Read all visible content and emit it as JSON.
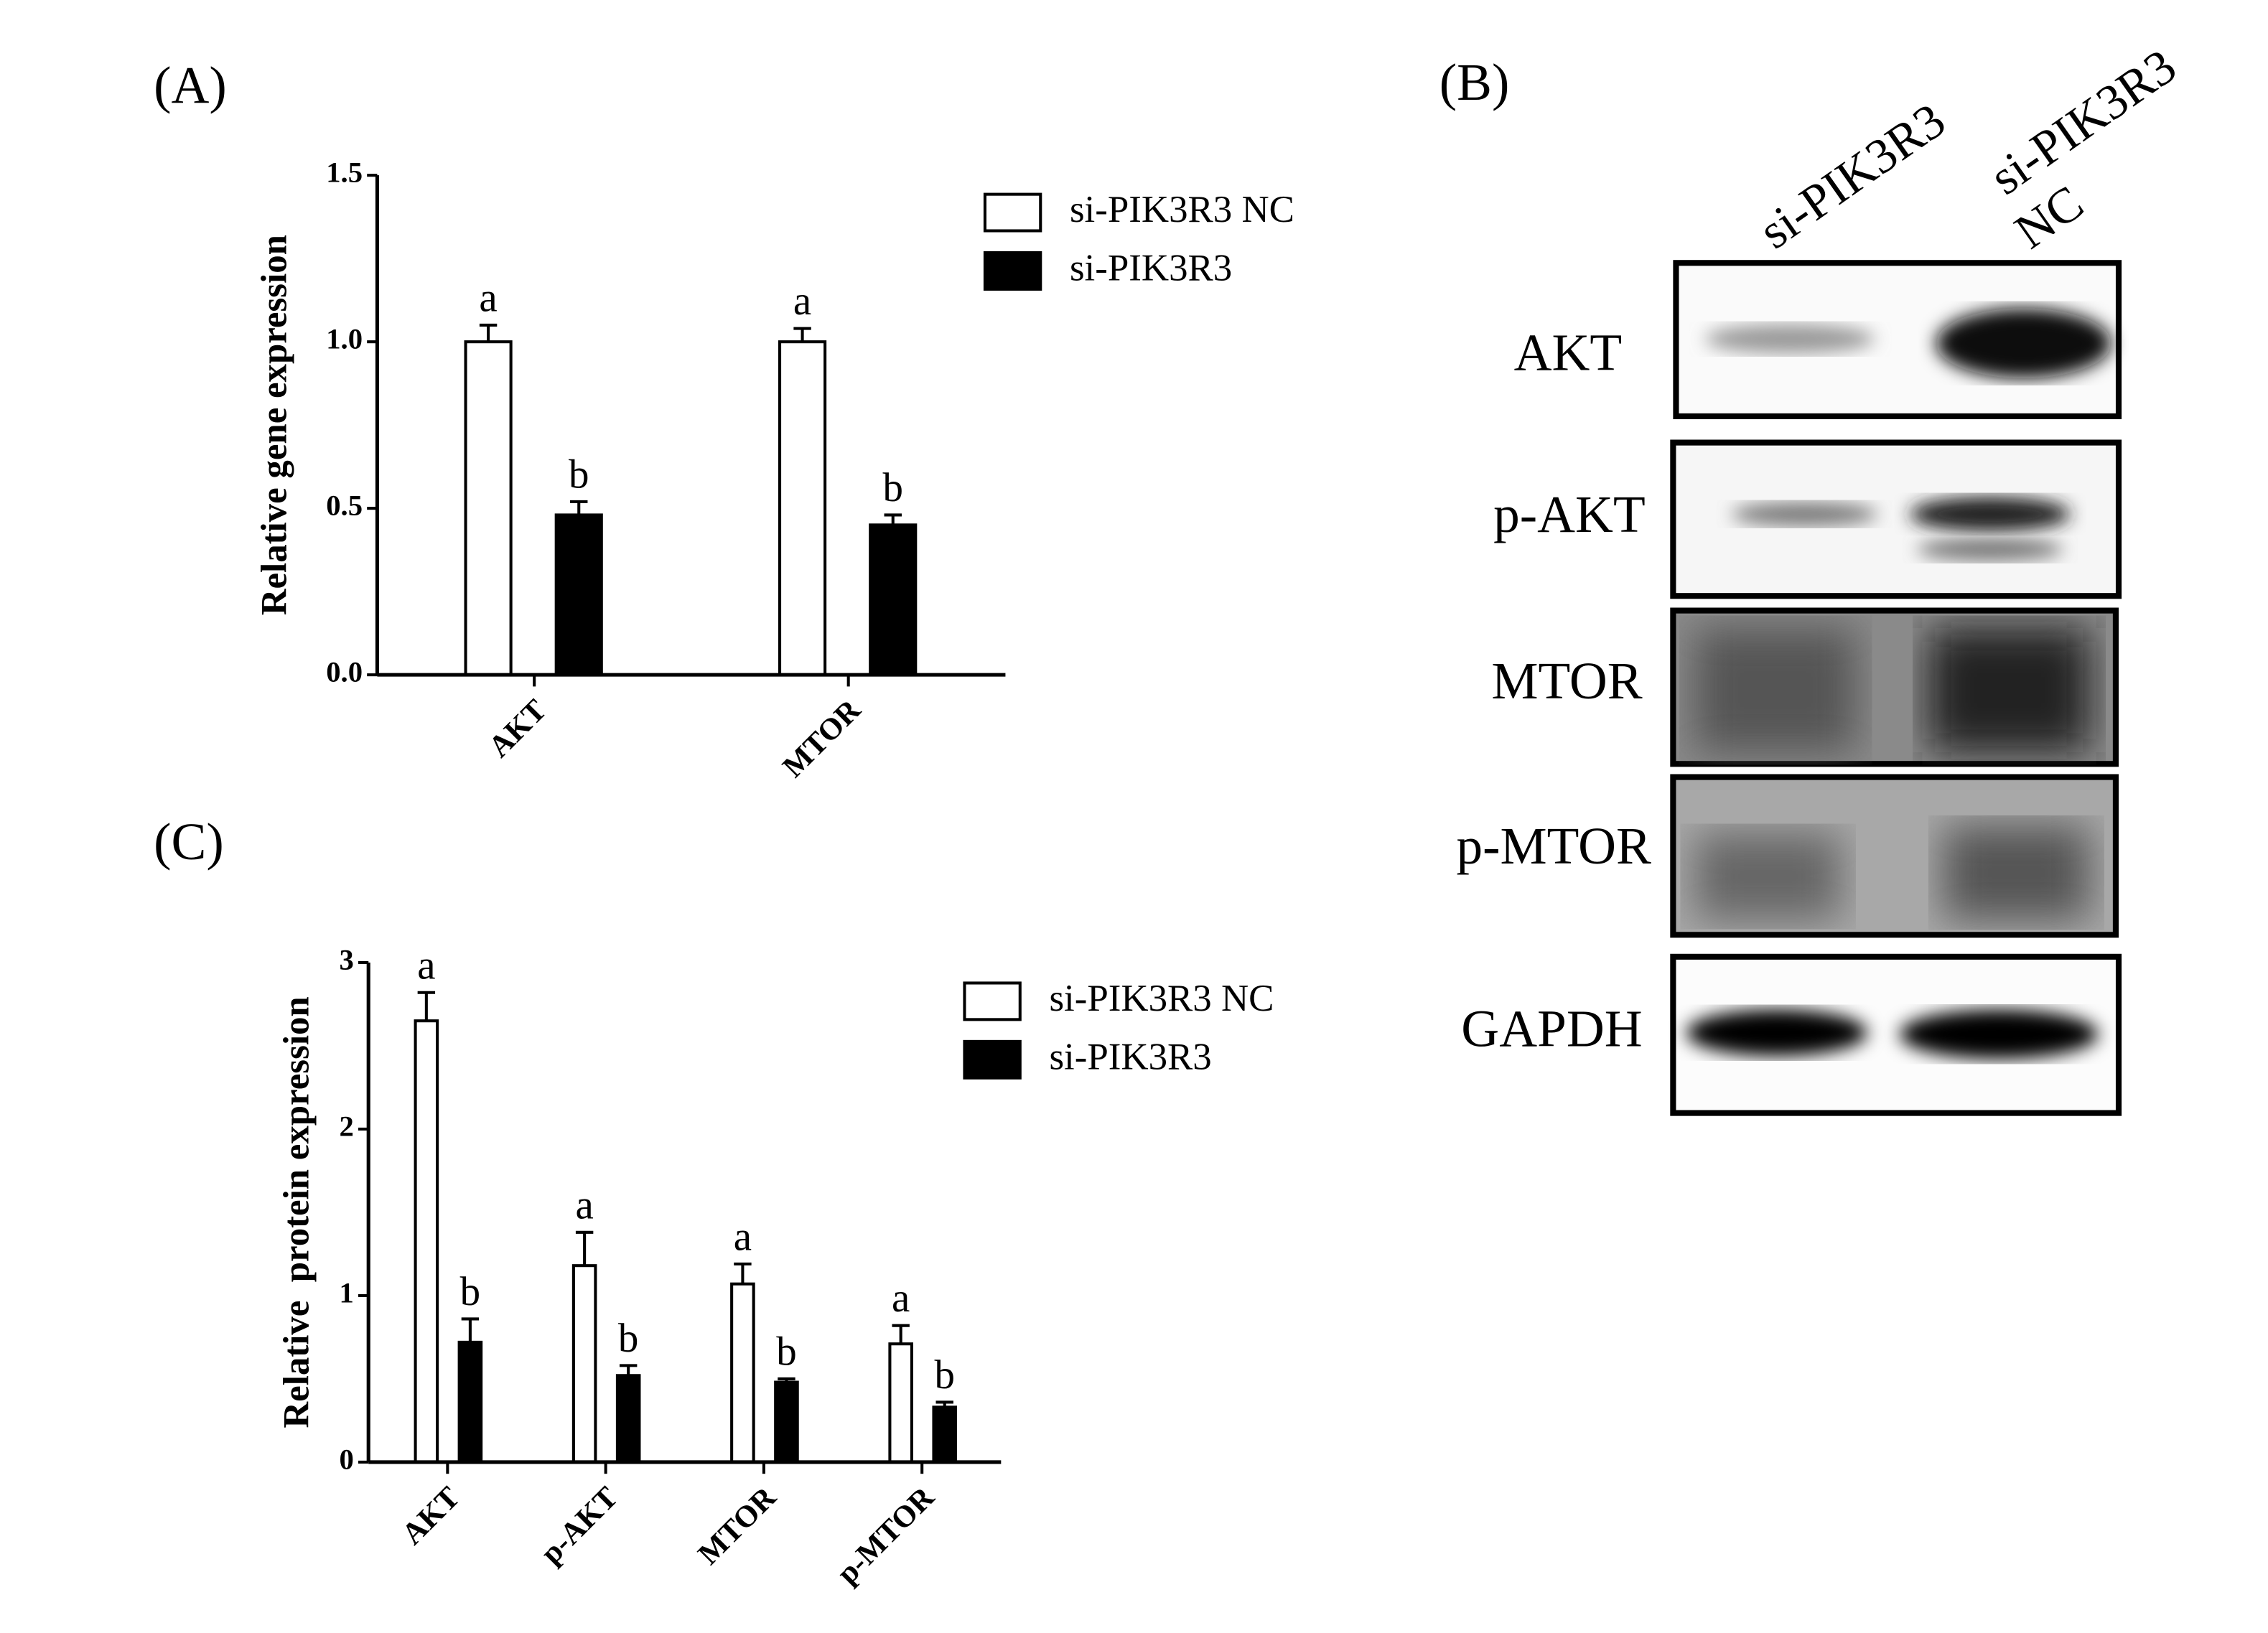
{
  "chart_data": [
    {
      "type": "bar",
      "panel_label": "(A)",
      "ylabel": "Relative gene expression",
      "categories": [
        "AKT",
        "MTOR"
      ],
      "series": [
        {
          "name": "si-PIK3R3 NC",
          "color": "#ffffff",
          "values": [
            1.0,
            1.0
          ],
          "errors": [
            0.05,
            0.04
          ],
          "significance": [
            "a",
            "a"
          ]
        },
        {
          "name": "si-PIK3R3",
          "color": "#000000",
          "values": [
            0.48,
            0.45
          ],
          "errors": [
            0.04,
            0.03
          ],
          "significance": [
            "b",
            "b"
          ]
        }
      ],
      "ylim": [
        0,
        1.5
      ],
      "yticks": [
        {
          "value": 0,
          "label": "0.0"
        },
        0.5,
        {
          "value": 1,
          "label": "1.0"
        },
        1.5
      ],
      "legend": "top-right"
    },
    {
      "type": "bar",
      "panel_label": "(C)",
      "ylabel": "Relative  protein expression",
      "categories": [
        "AKT",
        "p-AKT",
        "MTOR",
        "p-MTOR"
      ],
      "series": [
        {
          "name": "si-PIK3R3 NC",
          "color": "#ffffff",
          "values": [
            2.65,
            1.18,
            1.07,
            0.71
          ],
          "errors": [
            0.17,
            0.2,
            0.12,
            0.11
          ],
          "significance": [
            "a",
            "a",
            "a",
            "a"
          ]
        },
        {
          "name": "si-PIK3R3",
          "color": "#000000",
          "values": [
            0.72,
            0.52,
            0.48,
            0.33
          ],
          "errors": [
            0.14,
            0.06,
            0.02,
            0.03
          ],
          "significance": [
            "b",
            "b",
            "b",
            "b"
          ]
        }
      ],
      "ylim": [
        0,
        3
      ],
      "yticks": [
        0,
        1,
        2,
        3
      ],
      "legend": "top-right"
    }
  ],
  "blot": {
    "panel_label": "(B)",
    "lanes": [
      [
        "si-PIK3R3"
      ],
      [
        "si-PIK3R3",
        "NC"
      ]
    ],
    "rows": [
      "AKT",
      "p-AKT",
      "MTOR",
      "p-MTOR",
      "GAPDH"
    ]
  }
}
